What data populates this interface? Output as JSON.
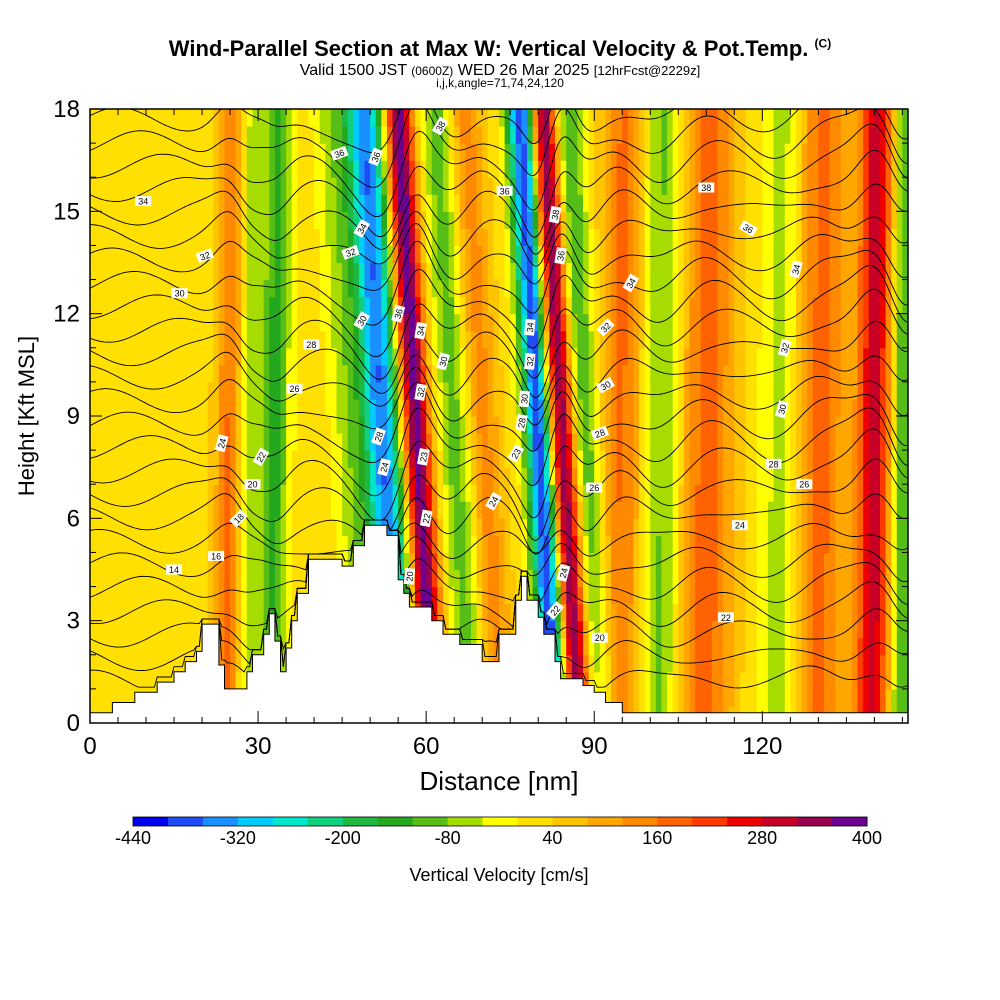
{
  "chart_data": {
    "type": "heatmap",
    "title": "Wind-Parallel Section at Max W: Vertical Velocity & Pot.Temp.",
    "title_mark": "(C)",
    "subtitle": "Valid 1500 JST (0600Z) WED 26 Mar 2025 [12hrFcst@2229z]",
    "subtitle_parts": {
      "a": "Valid 1500 JST ",
      "b": "(0600Z)",
      "c": " WED 26 Mar 2025 ",
      "d": "[12hrFcst@2229z]"
    },
    "subtitle2": "i,j,k,angle=71,74,24,120",
    "xlabel": "Distance [nm]",
    "ylabel": "Height [Kft MSL]",
    "xlim": [
      0,
      146
    ],
    "ylim": [
      0,
      18
    ],
    "xticks": [
      0,
      30,
      60,
      90,
      120
    ],
    "yticks": [
      0,
      3,
      6,
      9,
      12,
      15,
      18
    ],
    "colorbar": {
      "label": "Vertical Velocity [cm/s]",
      "range": [
        -440,
        400
      ],
      "step": 40,
      "tick_labels": [
        -440,
        -320,
        -200,
        -80,
        40,
        160,
        280,
        400
      ],
      "colors": [
        "#0000ee",
        "#1f4cf5",
        "#1a8fff",
        "#00ccff",
        "#00e6c8",
        "#10d080",
        "#1fb840",
        "#23a81e",
        "#56be16",
        "#a6dc00",
        "#ffff00",
        "#ffe000",
        "#ffc400",
        "#ffa600",
        "#ff8a00",
        "#ff6200",
        "#ff3a00",
        "#ee0000",
        "#c80028",
        "#980050",
        "#6c0090"
      ]
    },
    "velocity_features": [
      {
        "x": 25,
        "w": 2.5,
        "amp": 150
      },
      {
        "x": 28,
        "w": 2,
        "amp": -90
      },
      {
        "x": 33,
        "w": 2.5,
        "amp": -150
      },
      {
        "x": 46,
        "w": 3,
        "amp": -80
      },
      {
        "x": 52,
        "w": 3.5,
        "amp": -380
      },
      {
        "x": 58,
        "w": 2.5,
        "amp": 380
      },
      {
        "x": 65,
        "w": 3,
        "amp": -120
      },
      {
        "x": 70,
        "w": 3,
        "amp": 120
      },
      {
        "x": 80,
        "w": 2.5,
        "amp": -430
      },
      {
        "x": 84,
        "w": 2.5,
        "amp": 380
      },
      {
        "x": 88,
        "w": 3,
        "amp": -150
      },
      {
        "x": 95,
        "w": 4,
        "amp": 150
      },
      {
        "x": 102,
        "w": 4,
        "amp": -120
      },
      {
        "x": 110,
        "w": 5,
        "amp": 160
      },
      {
        "x": 124,
        "w": 4,
        "amp": -100
      },
      {
        "x": 130,
        "w": 5,
        "amp": 160
      },
      {
        "x": 140,
        "w": 3,
        "amp": 280
      },
      {
        "x": 145,
        "w": 2,
        "amp": -150
      }
    ],
    "terrain": [
      [
        0,
        0.3
      ],
      [
        4,
        0.3
      ],
      [
        4,
        0.6
      ],
      [
        8,
        0.6
      ],
      [
        8,
        0.9
      ],
      [
        12,
        0.9
      ],
      [
        12,
        1.2
      ],
      [
        15,
        1.2
      ],
      [
        15,
        1.5
      ],
      [
        17,
        1.5
      ],
      [
        17,
        1.8
      ],
      [
        19,
        1.8
      ],
      [
        19,
        2.1
      ],
      [
        20,
        2.1
      ],
      [
        20,
        2.9
      ],
      [
        23,
        2.9
      ],
      [
        23,
        1.7
      ],
      [
        24,
        1.7
      ],
      [
        24,
        1.0
      ],
      [
        28,
        1.0
      ],
      [
        28,
        1.5
      ],
      [
        29,
        1.5
      ],
      [
        29,
        2.0
      ],
      [
        31,
        2.0
      ],
      [
        31,
        2.6
      ],
      [
        32,
        2.6
      ],
      [
        32,
        3.2
      ],
      [
        33,
        3.2
      ],
      [
        33,
        2.4
      ],
      [
        34,
        2.4
      ],
      [
        34,
        1.5
      ],
      [
        35,
        1.5
      ],
      [
        35,
        2.2
      ],
      [
        36,
        2.2
      ],
      [
        36,
        3.0
      ],
      [
        37,
        3.0
      ],
      [
        37,
        3.8
      ],
      [
        39,
        3.8
      ],
      [
        39,
        4.8
      ],
      [
        45,
        4.8
      ],
      [
        45,
        4.6
      ],
      [
        47,
        4.6
      ],
      [
        47,
        5.2
      ],
      [
        49,
        5.2
      ],
      [
        49,
        5.8
      ],
      [
        53,
        5.8
      ],
      [
        53,
        5.5
      ],
      [
        55,
        5.5
      ],
      [
        55,
        4.2
      ],
      [
        56,
        4.2
      ],
      [
        56,
        3.8
      ],
      [
        57,
        3.8
      ],
      [
        57,
        3.4
      ],
      [
        61,
        3.4
      ],
      [
        61,
        3.0
      ],
      [
        63,
        3.0
      ],
      [
        63,
        2.6
      ],
      [
        66,
        2.6
      ],
      [
        66,
        2.3
      ],
      [
        70,
        2.3
      ],
      [
        70,
        1.8
      ],
      [
        73,
        1.8
      ],
      [
        73,
        2.6
      ],
      [
        76,
        2.6
      ],
      [
        76,
        3.6
      ],
      [
        77,
        3.6
      ],
      [
        77,
        4.3
      ],
      [
        78,
        4.3
      ],
      [
        78,
        3.6
      ],
      [
        80,
        3.6
      ],
      [
        80,
        3.1
      ],
      [
        81,
        3.1
      ],
      [
        81,
        2.6
      ],
      [
        83,
        2.6
      ],
      [
        83,
        1.8
      ],
      [
        84,
        1.8
      ],
      [
        84,
        1.3
      ],
      [
        88,
        1.3
      ],
      [
        88,
        1.1
      ],
      [
        90,
        1.1
      ],
      [
        90,
        0.9
      ],
      [
        92,
        0.9
      ],
      [
        92,
        0.6
      ],
      [
        95,
        0.6
      ],
      [
        95,
        0.3
      ],
      [
        146,
        0.3
      ],
      [
        146,
        0
      ],
      [
        0,
        0
      ]
    ],
    "theta_contours": {
      "min": 14,
      "max": 38,
      "step": 1
    },
    "contour_labels": [
      {
        "v": "34",
        "x": 9.5,
        "y": 15.3,
        "r": 0
      },
      {
        "v": "32",
        "x": 20.5,
        "y": 13.7,
        "r": -20
      },
      {
        "v": "30",
        "x": 16,
        "y": 12.6,
        "r": 0
      },
      {
        "v": "28",
        "x": 39.5,
        "y": 11.1,
        "r": 0
      },
      {
        "v": "26",
        "x": 36.5,
        "y": 9.8,
        "r": 0
      },
      {
        "v": "36",
        "x": 44.5,
        "y": 16.7,
        "r": -20
      },
      {
        "v": "34",
        "x": 48.5,
        "y": 14.5,
        "r": -60
      },
      {
        "v": "32",
        "x": 46.5,
        "y": 13.8,
        "r": -20
      },
      {
        "v": "30",
        "x": 48.5,
        "y": 11.8,
        "r": -60
      },
      {
        "v": "36",
        "x": 51,
        "y": 16.6,
        "r": -70
      },
      {
        "v": "36",
        "x": 55,
        "y": 12.0,
        "r": -75
      },
      {
        "v": "34",
        "x": 59,
        "y": 11.5,
        "r": -80
      },
      {
        "v": "32",
        "x": 59,
        "y": 9.7,
        "r": -80
      },
      {
        "v": "30",
        "x": 63,
        "y": 10.6,
        "r": -75
      },
      {
        "v": "28",
        "x": 51.5,
        "y": 8.4,
        "r": -70
      },
      {
        "v": "24",
        "x": 52.5,
        "y": 7.5,
        "r": -75
      },
      {
        "v": "23",
        "x": 59.5,
        "y": 7.8,
        "r": -80
      },
      {
        "v": "22",
        "x": 60,
        "y": 6.0,
        "r": -80
      },
      {
        "v": "20",
        "x": 57,
        "y": 4.3,
        "r": -85
      },
      {
        "v": "38",
        "x": 62.5,
        "y": 17.5,
        "r": -60
      },
      {
        "v": "24",
        "x": 23.5,
        "y": 8.2,
        "r": -75
      },
      {
        "v": "22",
        "x": 30.5,
        "y": 7.8,
        "r": -60
      },
      {
        "v": "20",
        "x": 29,
        "y": 7.0,
        "r": 0
      },
      {
        "v": "18",
        "x": 26.5,
        "y": 6.0,
        "r": -45
      },
      {
        "v": "16",
        "x": 22.5,
        "y": 4.9,
        "r": 0
      },
      {
        "v": "14",
        "x": 15,
        "y": 4.5,
        "r": 0
      },
      {
        "v": "36",
        "x": 74,
        "y": 15.6,
        "r": 0
      },
      {
        "v": "34",
        "x": 78.5,
        "y": 11.6,
        "r": -85
      },
      {
        "v": "32",
        "x": 78.5,
        "y": 10.6,
        "r": -85
      },
      {
        "v": "30",
        "x": 77.5,
        "y": 9.5,
        "r": -85
      },
      {
        "v": "28",
        "x": 77,
        "y": 8.8,
        "r": -80
      },
      {
        "v": "23",
        "x": 76,
        "y": 7.9,
        "r": -60
      },
      {
        "v": "24",
        "x": 72,
        "y": 6.5,
        "r": -60
      },
      {
        "v": "38",
        "x": 83,
        "y": 14.9,
        "r": -80
      },
      {
        "v": "36",
        "x": 84,
        "y": 13.7,
        "r": -80
      },
      {
        "v": "24",
        "x": 84.5,
        "y": 4.4,
        "r": -75
      },
      {
        "v": "22",
        "x": 83,
        "y": 3.3,
        "r": -50
      },
      {
        "v": "20",
        "x": 91,
        "y": 2.5,
        "r": 0
      },
      {
        "v": "34",
        "x": 96.5,
        "y": 12.9,
        "r": -60
      },
      {
        "v": "32",
        "x": 92,
        "y": 11.6,
        "r": -45
      },
      {
        "v": "30",
        "x": 92,
        "y": 9.9,
        "r": -30
      },
      {
        "v": "28",
        "x": 91,
        "y": 8.5,
        "r": -20
      },
      {
        "v": "26",
        "x": 90,
        "y": 6.9,
        "r": 0
      },
      {
        "v": "38",
        "x": 110,
        "y": 15.7,
        "r": 0
      },
      {
        "v": "36",
        "x": 117.5,
        "y": 14.5,
        "r": 30
      },
      {
        "v": "34",
        "x": 126,
        "y": 13.3,
        "r": -75
      },
      {
        "v": "32",
        "x": 124,
        "y": 11.0,
        "r": -75
      },
      {
        "v": "30",
        "x": 123.5,
        "y": 9.2,
        "r": -75
      },
      {
        "v": "28",
        "x": 122,
        "y": 7.6,
        "r": 0
      },
      {
        "v": "26",
        "x": 127.5,
        "y": 7.0,
        "r": 0
      },
      {
        "v": "24",
        "x": 116,
        "y": 5.8,
        "r": 0
      },
      {
        "v": "22",
        "x": 113.5,
        "y": 3.1,
        "r": 0
      }
    ]
  }
}
